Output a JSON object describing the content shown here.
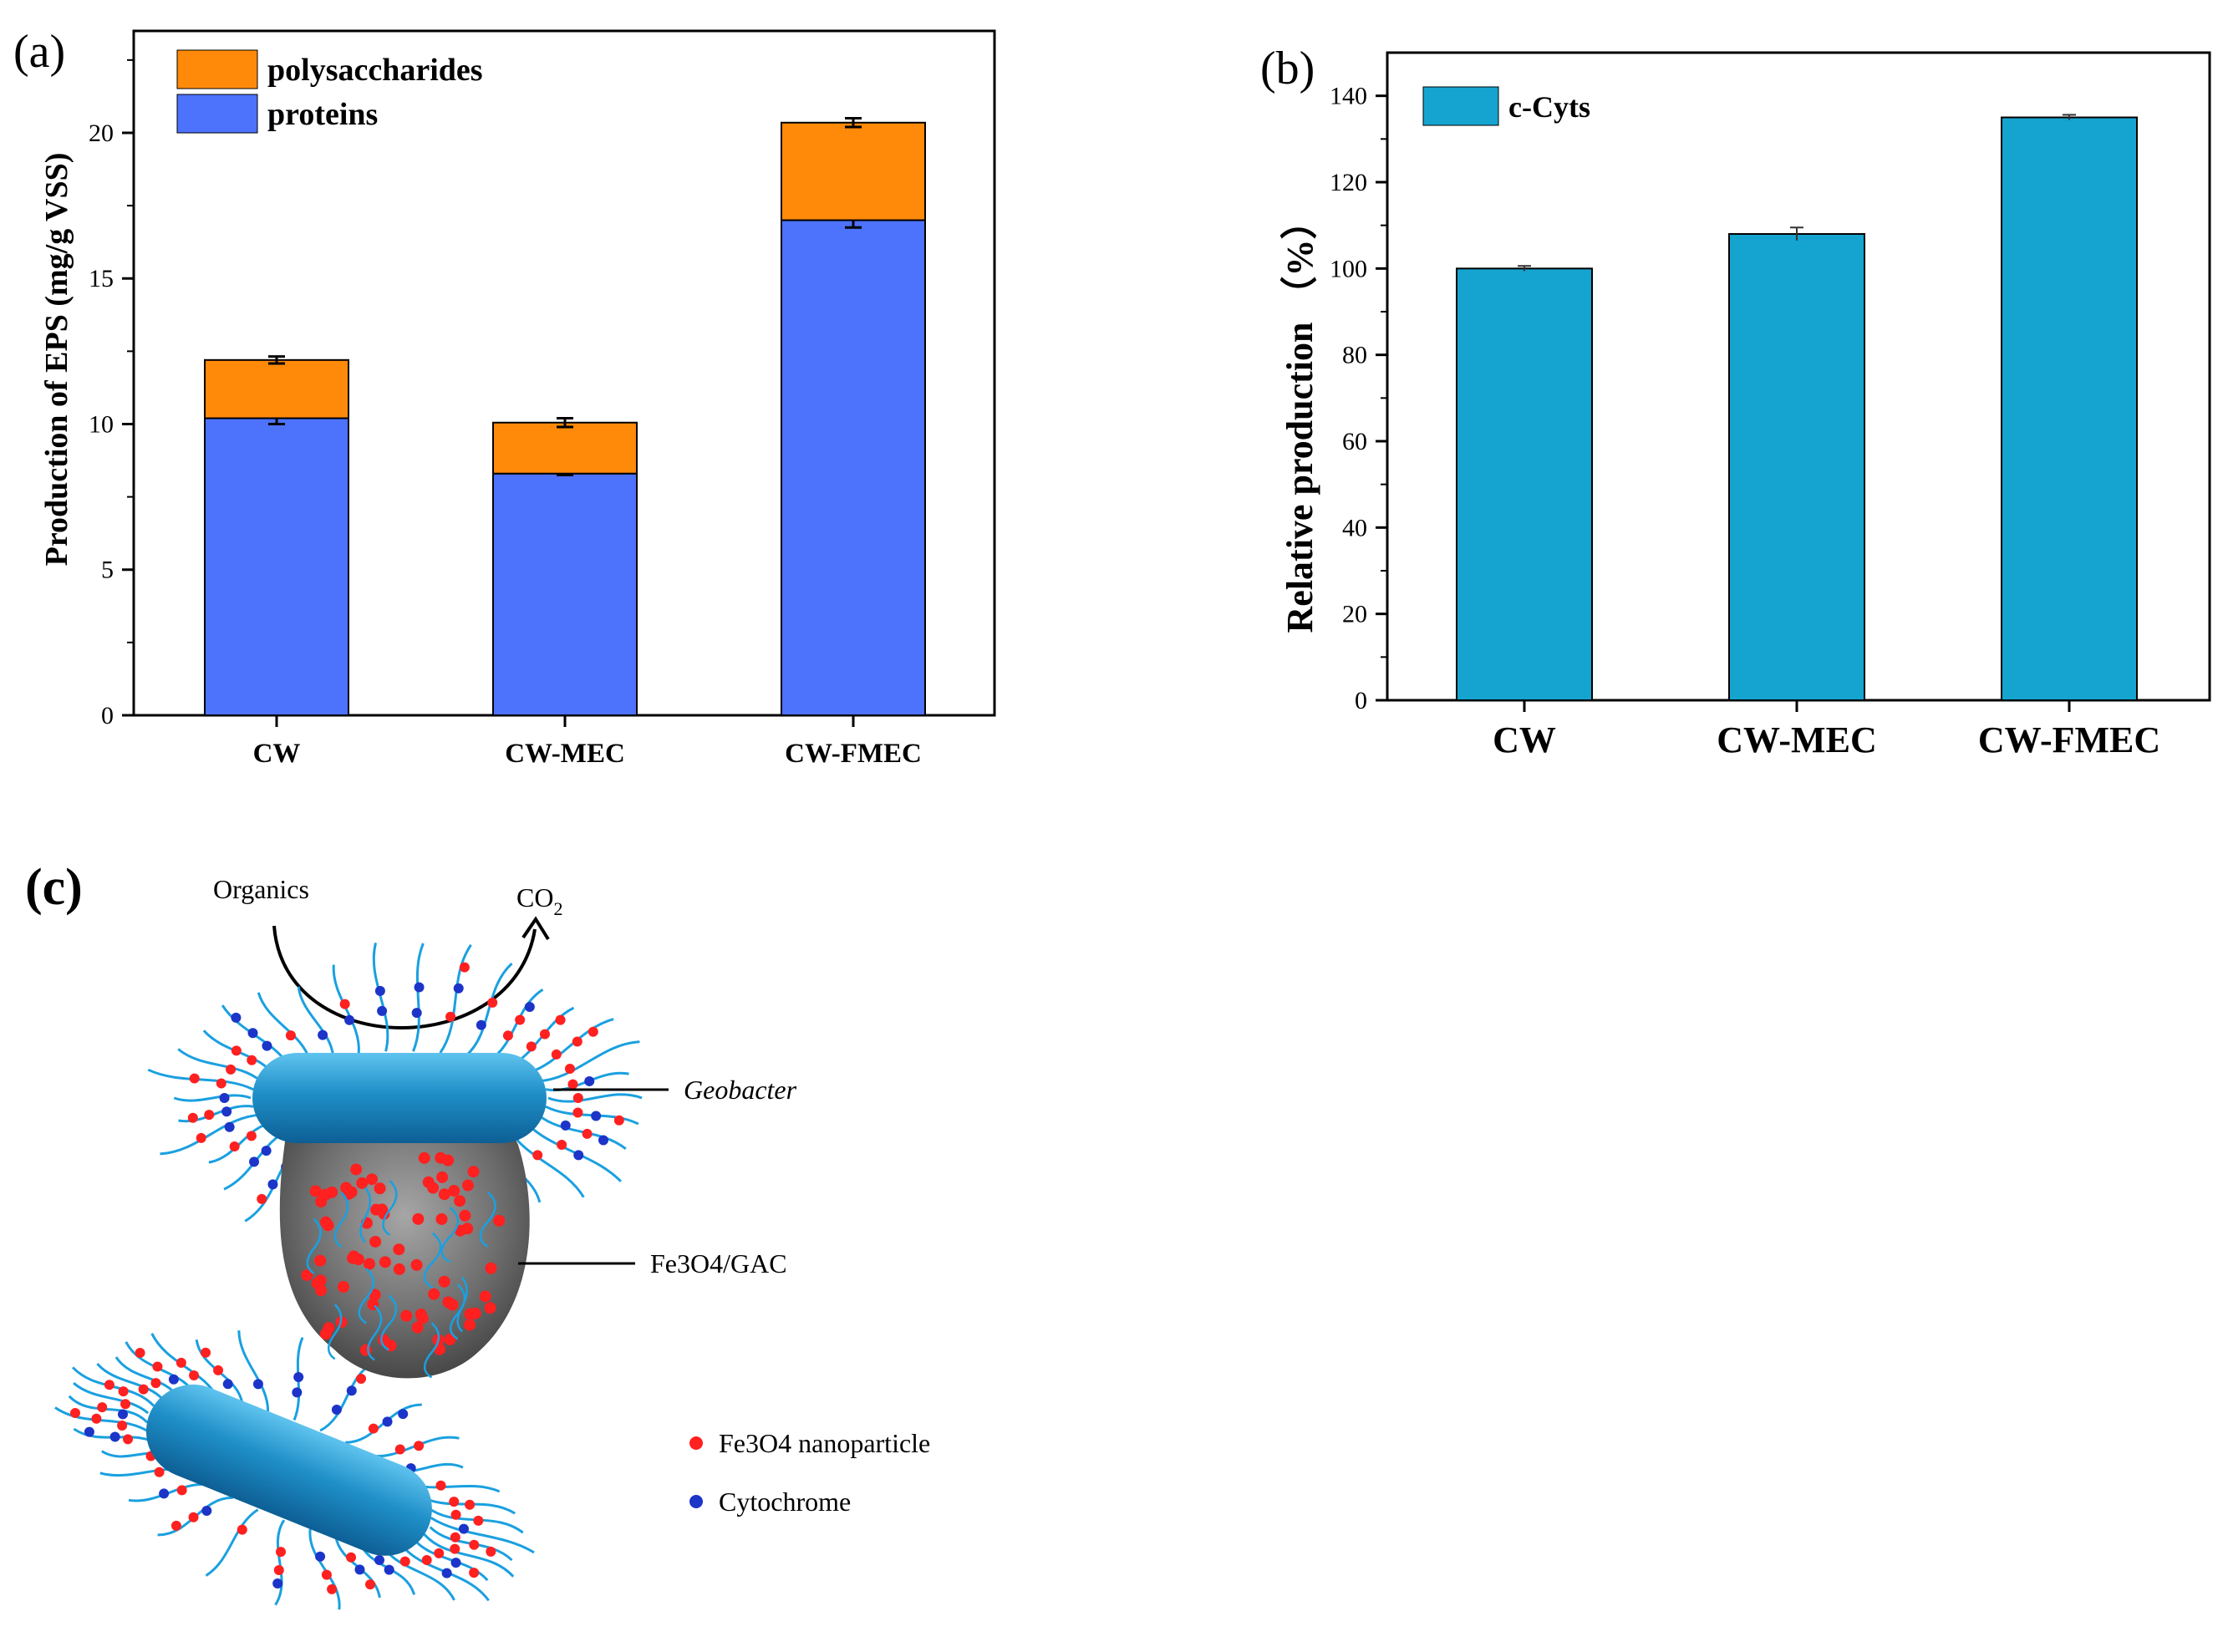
{
  "chart_data": [
    {
      "panel_label": "(a)",
      "type": "bar",
      "stacked": true,
      "categories": [
        "CW",
        "CW-MEC",
        "CW-FMEC"
      ],
      "series": [
        {
          "name": "proteins",
          "values": [
            10.2,
            8.3,
            17.0
          ],
          "errors": [
            0.2,
            0.05,
            0.25
          ],
          "color": "#4d72fc"
        },
        {
          "name": "polysaccharides",
          "values": [
            2.0,
            1.75,
            3.35
          ],
          "errors": [
            0.12,
            0.15,
            0.15
          ],
          "color": "#ff8a0a"
        }
      ],
      "ylabel": "Production of EPS (mg/g VSS)",
      "xlabel": "",
      "ylim": [
        0,
        23.5
      ],
      "yticks": [
        0,
        5,
        10,
        15,
        20
      ],
      "legend_position": "top-left",
      "grid": false
    },
    {
      "panel_label": "(b)",
      "type": "bar",
      "categories": [
        "CW",
        "CW-MEC",
        "CW-FMEC"
      ],
      "series": [
        {
          "name": "c-Cyts",
          "values": [
            100,
            108,
            135
          ],
          "errors": [
            0.6,
            1.5,
            0.6
          ],
          "color": "#15a4cf"
        }
      ],
      "ylabel": "Relative production （%）",
      "xlabel": "",
      "ylim": [
        0,
        150
      ],
      "yticks": [
        0,
        20,
        40,
        60,
        80,
        100,
        120,
        140
      ],
      "legend_position": "top-left",
      "grid": false
    }
  ],
  "diagram": {
    "panel_label": "(c)",
    "organics_label": "Organics",
    "co2_label": "CO",
    "co2_subscript": "2",
    "geobacter_label": "Geobacter",
    "gac_label": "Fe3O4/GAC",
    "legend": [
      {
        "label": "Fe3O4 nanoparticle",
        "color": "#ff2020"
      },
      {
        "label": "Cytochrome",
        "color": "#1c34c8"
      }
    ],
    "colors": {
      "cell": "#1f8fc8",
      "gac": "#6d6d6d",
      "filament": "#1aa0e0",
      "arrow": "#000000"
    }
  }
}
